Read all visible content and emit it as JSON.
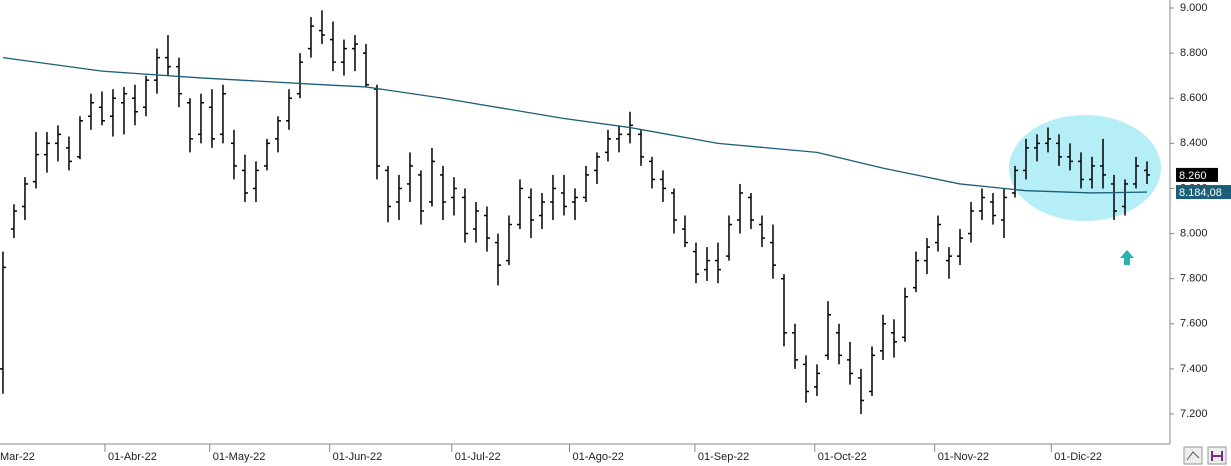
{
  "chart_data": {
    "type": "ohlc",
    "bar_color": "#000000",
    "ohlc": [
      [
        7400,
        7920,
        7290,
        7850
      ],
      [
        8020,
        8130,
        7980,
        8100
      ],
      [
        8120,
        8250,
        8060,
        8220
      ],
      [
        8230,
        8450,
        8200,
        8350
      ],
      [
        8350,
        8450,
        8270,
        8400
      ],
      [
        8400,
        8480,
        8320,
        8440
      ],
      [
        8380,
        8430,
        8280,
        8320
      ],
      [
        8340,
        8520,
        8330,
        8500
      ],
      [
        8520,
        8620,
        8460,
        8580
      ],
      [
        8560,
        8630,
        8480,
        8500
      ],
      [
        8520,
        8640,
        8430,
        8600
      ],
      [
        8580,
        8650,
        8440,
        8620
      ],
      [
        8600,
        8660,
        8480,
        8540
      ],
      [
        8560,
        8700,
        8520,
        8680
      ],
      [
        8680,
        8820,
        8620,
        8780
      ],
      [
        8780,
        8880,
        8700,
        8740
      ],
      [
        8740,
        8780,
        8560,
        8620
      ],
      [
        8580,
        8600,
        8360,
        8420
      ],
      [
        8440,
        8620,
        8400,
        8580
      ],
      [
        8560,
        8640,
        8380,
        8420
      ],
      [
        8440,
        8660,
        8400,
        8620
      ],
      [
        8400,
        8460,
        8240,
        8300
      ],
      [
        8280,
        8350,
        8140,
        8180
      ],
      [
        8200,
        8320,
        8140,
        8280
      ],
      [
        8300,
        8420,
        8280,
        8400
      ],
      [
        8420,
        8520,
        8360,
        8500
      ],
      [
        8500,
        8640,
        8460,
        8600
      ],
      [
        8620,
        8800,
        8600,
        8760
      ],
      [
        8820,
        8960,
        8780,
        8920
      ],
      [
        8900,
        8990,
        8840,
        8880
      ],
      [
        8860,
        8940,
        8720,
        8760
      ],
      [
        8760,
        8860,
        8700,
        8820
      ],
      [
        8820,
        8880,
        8720,
        8840
      ],
      [
        8800,
        8840,
        8650,
        8660
      ],
      [
        8640,
        8660,
        8240,
        8300
      ],
      [
        8280,
        8300,
        8050,
        8120
      ],
      [
        8140,
        8260,
        8060,
        8200
      ],
      [
        8220,
        8360,
        8140,
        8300
      ],
      [
        8260,
        8280,
        8040,
        8100
      ],
      [
        8140,
        8380,
        8120,
        8320
      ],
      [
        8260,
        8300,
        8060,
        8140
      ],
      [
        8160,
        8250,
        8080,
        8200
      ],
      [
        8160,
        8200,
        7960,
        8000
      ],
      [
        8020,
        8140,
        7960,
        8100
      ],
      [
        8080,
        8120,
        7920,
        7980
      ],
      [
        7960,
        8000,
        7770,
        7860
      ],
      [
        7880,
        8080,
        7860,
        8040
      ],
      [
        8040,
        8240,
        8020,
        8200
      ],
      [
        8160,
        8200,
        7980,
        8060
      ],
      [
        8080,
        8180,
        8020,
        8140
      ],
      [
        8140,
        8260,
        8060,
        8200
      ],
      [
        8180,
        8260,
        8080,
        8120
      ],
      [
        8140,
        8200,
        8060,
        8160
      ],
      [
        8160,
        8300,
        8140,
        8260
      ],
      [
        8280,
        8360,
        8220,
        8340
      ],
      [
        8360,
        8460,
        8320,
        8420
      ],
      [
        8420,
        8480,
        8360,
        8440
      ],
      [
        8440,
        8540,
        8400,
        8480
      ],
      [
        8440,
        8460,
        8300,
        8340
      ],
      [
        8320,
        8340,
        8200,
        8240
      ],
      [
        8240,
        8280,
        8140,
        8200
      ],
      [
        8180,
        8200,
        8000,
        8060
      ],
      [
        8020,
        8080,
        7940,
        7960
      ],
      [
        7920,
        7960,
        7780,
        7820
      ],
      [
        7840,
        7940,
        7790,
        7880
      ],
      [
        7880,
        7960,
        7780,
        7840
      ],
      [
        7900,
        8080,
        7880,
        8040
      ],
      [
        8060,
        8220,
        8000,
        8180
      ],
      [
        8160,
        8180,
        8020,
        8060
      ],
      [
        8040,
        8080,
        7940,
        7980
      ],
      [
        7960,
        8040,
        7800,
        7860
      ],
      [
        7800,
        7820,
        7500,
        7560
      ],
      [
        7560,
        7600,
        7400,
        7440
      ],
      [
        7420,
        7460,
        7250,
        7300
      ],
      [
        7320,
        7420,
        7280,
        7380
      ],
      [
        7460,
        7700,
        7440,
        7640
      ],
      [
        7560,
        7600,
        7420,
        7460
      ],
      [
        7440,
        7520,
        7330,
        7380
      ],
      [
        7360,
        7400,
        7200,
        7260
      ],
      [
        7300,
        7500,
        7280,
        7460
      ],
      [
        7480,
        7640,
        7440,
        7600
      ],
      [
        7560,
        7620,
        7450,
        7520
      ],
      [
        7540,
        7760,
        7520,
        7720
      ],
      [
        7760,
        7920,
        7740,
        7880
      ],
      [
        7880,
        7980,
        7820,
        7940
      ],
      [
        7960,
        8080,
        7920,
        8040
      ],
      [
        7880,
        7940,
        7800,
        7900
      ],
      [
        7900,
        8020,
        7860,
        7980
      ],
      [
        8000,
        8140,
        7960,
        8100
      ],
      [
        8100,
        8200,
        8060,
        8160
      ],
      [
        8140,
        8180,
        8040,
        8080
      ],
      [
        8060,
        8200,
        7980,
        8160
      ],
      [
        8180,
        8300,
        8160,
        8280
      ],
      [
        8280,
        8420,
        8240,
        8380
      ],
      [
        8380,
        8440,
        8320,
        8400
      ],
      [
        8400,
        8470,
        8360,
        8420
      ],
      [
        8400,
        8440,
        8300,
        8340
      ],
      [
        8340,
        8400,
        8280,
        8320
      ],
      [
        8320,
        8360,
        8200,
        8240
      ],
      [
        8240,
        8340,
        8200,
        8300
      ],
      [
        8300,
        8420,
        8200,
        8260
      ],
      [
        8220,
        8260,
        8060,
        8100
      ],
      [
        8120,
        8240,
        8080,
        8220
      ],
      [
        8220,
        8340,
        8200,
        8300
      ],
      [
        8280,
        8320,
        8220,
        8260
      ]
    ],
    "xlim": [
      -0.27,
      106.09
    ],
    "xticks": [
      {
        "value": -2.1,
        "label": "Mar-22"
      },
      {
        "value": 9.27,
        "label": "01-Abr-22"
      },
      {
        "value": 18.8,
        "label": "01-May-22"
      },
      {
        "value": 29.7,
        "label": "01-Jun-22"
      },
      {
        "value": 40.8,
        "label": "01-Jul-22"
      },
      {
        "value": 51.5,
        "label": "01-Ago-22"
      },
      {
        "value": 62.9,
        "label": "01-Sep-22"
      },
      {
        "value": 73.8,
        "label": "01-Oct-22"
      },
      {
        "value": 84.7,
        "label": "01-Nov-22"
      },
      {
        "value": 95.3,
        "label": "01-Dic-22"
      }
    ],
    "ylim": [
      7067,
      9035.5
    ],
    "yticks": [
      {
        "value": 7200,
        "label": "7.200"
      },
      {
        "value": 7400,
        "label": "7.400"
      },
      {
        "value": 7600,
        "label": "7.600"
      },
      {
        "value": 7800,
        "label": "7.800"
      },
      {
        "value": 8000,
        "label": "8.000"
      },
      {
        "value": 8200,
        "label": "8.200"
      },
      {
        "value": 8400,
        "label": "8.400"
      },
      {
        "value": 8600,
        "label": "8.600"
      },
      {
        "value": 8800,
        "label": "8.800"
      },
      {
        "value": 9000,
        "label": "9.000"
      }
    ],
    "moving_average": {
      "color": "#1a5e78",
      "x": [
        0,
        9,
        18,
        29,
        33,
        40,
        51,
        57,
        65,
        74,
        80,
        87,
        93,
        99,
        104
      ],
      "values": [
        8780,
        8720,
        8690,
        8660,
        8650,
        8600,
        8510,
        8470,
        8400,
        8360,
        8290,
        8220,
        8190,
        8180,
        8184.08
      ]
    },
    "last_price": {
      "value": 8260,
      "label": "8.260",
      "color": "#000000"
    },
    "ma_last": {
      "value": 8184.08,
      "label": "8.184,08",
      "color": "#1a5e78"
    }
  }
}
